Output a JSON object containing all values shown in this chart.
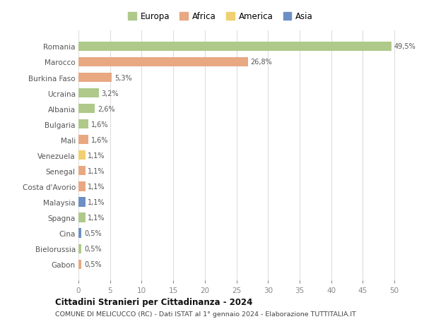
{
  "countries": [
    "Romania",
    "Marocco",
    "Burkina Faso",
    "Ucraina",
    "Albania",
    "Bulgaria",
    "Mali",
    "Venezuela",
    "Senegal",
    "Costa d'Avorio",
    "Malaysia",
    "Spagna",
    "Cina",
    "Bielorussia",
    "Gabon"
  ],
  "values": [
    49.5,
    26.8,
    5.3,
    3.2,
    2.6,
    1.6,
    1.6,
    1.1,
    1.1,
    1.1,
    1.1,
    1.1,
    0.5,
    0.5,
    0.5
  ],
  "labels": [
    "49,5%",
    "26,8%",
    "5,3%",
    "3,2%",
    "2,6%",
    "1,6%",
    "1,6%",
    "1,1%",
    "1,1%",
    "1,1%",
    "1,1%",
    "1,1%",
    "0,5%",
    "0,5%",
    "0,5%"
  ],
  "colors": [
    "#aec98a",
    "#e8a882",
    "#e8a882",
    "#aec98a",
    "#aec98a",
    "#aec98a",
    "#e8a882",
    "#f0d070",
    "#e8a882",
    "#e8a882",
    "#6e8fc4",
    "#aec98a",
    "#6e8fc4",
    "#aec98a",
    "#e8a882"
  ],
  "legend_labels": [
    "Europa",
    "Africa",
    "America",
    "Asia"
  ],
  "legend_colors": [
    "#aec98a",
    "#e8a882",
    "#f0d070",
    "#6e8fc4"
  ],
  "title1": "Cittadini Stranieri per Cittadinanza - 2024",
  "title2": "COMUNE DI MELICUCCO (RC) - Dati ISTAT al 1° gennaio 2024 - Elaborazione TUTTITALIA.IT",
  "xlim": [
    0,
    52
  ],
  "xticks": [
    0,
    5,
    10,
    15,
    20,
    25,
    30,
    35,
    40,
    45,
    50
  ],
  "background_color": "#ffffff",
  "grid_color": "#dddddd"
}
